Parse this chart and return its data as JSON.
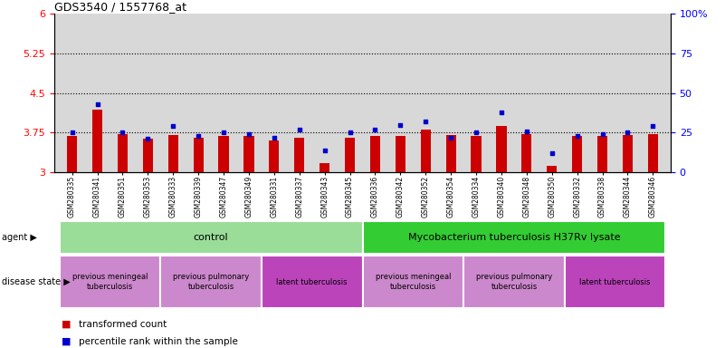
{
  "title": "GDS3540 / 1557768_at",
  "samples": [
    "GSM280335",
    "GSM280341",
    "GSM280351",
    "GSM280353",
    "GSM280333",
    "GSM280339",
    "GSM280347",
    "GSM280349",
    "GSM280331",
    "GSM280337",
    "GSM280343",
    "GSM280345",
    "GSM280336",
    "GSM280342",
    "GSM280352",
    "GSM280354",
    "GSM280334",
    "GSM280340",
    "GSM280348",
    "GSM280350",
    "GSM280332",
    "GSM280338",
    "GSM280344",
    "GSM280346"
  ],
  "red_values": [
    3.68,
    4.18,
    3.72,
    3.63,
    3.71,
    3.66,
    3.68,
    3.69,
    3.61,
    3.65,
    3.18,
    3.65,
    3.68,
    3.68,
    3.8,
    3.7,
    3.68,
    3.87,
    3.72,
    3.12,
    3.68,
    3.68,
    3.7,
    3.72
  ],
  "blue_values": [
    25,
    43,
    25,
    21,
    29,
    23,
    25,
    24,
    22,
    27,
    14,
    25,
    27,
    30,
    32,
    22,
    25,
    38,
    26,
    12,
    23,
    24,
    25,
    29
  ],
  "ylim_left": [
    3.0,
    6.0
  ],
  "ylim_right": [
    0,
    100
  ],
  "yticks_left": [
    3.0,
    3.75,
    4.5,
    5.25,
    6.0
  ],
  "yticks_left_labels": [
    "3",
    "3.75",
    "4.5",
    "5.25",
    "6"
  ],
  "yticks_right": [
    0,
    25,
    50,
    75,
    100
  ],
  "yticks_right_labels": [
    "0",
    "25",
    "50",
    "75",
    "100%"
  ],
  "hlines": [
    3.75,
    4.5,
    5.25
  ],
  "bar_color": "#cc0000",
  "dot_color": "#0000cc",
  "bg_color": "#d8d8d8",
  "agent_groups": [
    {
      "label": "control",
      "start": 0,
      "end": 12,
      "color": "#99dd99"
    },
    {
      "label": "Mycobacterium tuberculosis H37Rv lysate",
      "start": 12,
      "end": 24,
      "color": "#33cc33"
    }
  ],
  "disease_groups": [
    {
      "label": "previous meningeal\ntuberculosis",
      "start": 0,
      "end": 4,
      "color": "#cc88cc"
    },
    {
      "label": "previous pulmonary\ntuberculosis",
      "start": 4,
      "end": 8,
      "color": "#cc88cc"
    },
    {
      "label": "latent tuberculosis",
      "start": 8,
      "end": 12,
      "color": "#bb44bb"
    },
    {
      "label": "previous meningeal\ntuberculosis",
      "start": 12,
      "end": 16,
      "color": "#cc88cc"
    },
    {
      "label": "previous pulmonary\ntuberculosis",
      "start": 16,
      "end": 20,
      "color": "#cc88cc"
    },
    {
      "label": "latent tuberculosis",
      "start": 20,
      "end": 24,
      "color": "#bb44bb"
    }
  ],
  "legend_items": [
    {
      "label": "transformed count",
      "color": "#cc0000"
    },
    {
      "label": "percentile rank within the sample",
      "color": "#0000cc"
    }
  ]
}
